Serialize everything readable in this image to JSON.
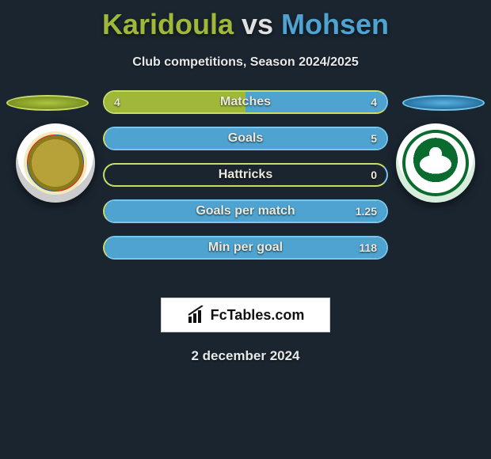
{
  "title": {
    "left": "Karidoula",
    "vs": "vs",
    "right": "Mohsen"
  },
  "subtitle": "Club competitions, Season 2024/2025",
  "colors": {
    "left": "#9fb83a",
    "left_border": "#c8dd65",
    "right": "#4fa3d1",
    "right_border": "#79c7ef",
    "bar_bg": "#1a2530",
    "text": "#eceadc"
  },
  "bars": [
    {
      "label": "Matches",
      "left": "4",
      "right": "4",
      "left_pct": 50,
      "right_pct": 50
    },
    {
      "label": "Goals",
      "left": "",
      "right": "5",
      "left_pct": 0,
      "right_pct": 100
    },
    {
      "label": "Hattricks",
      "left": "",
      "right": "0",
      "left_pct": 0,
      "right_pct": 0
    },
    {
      "label": "Goals per match",
      "left": "",
      "right": "1.25",
      "left_pct": 0,
      "right_pct": 100
    },
    {
      "label": "Min per goal",
      "left": "",
      "right": "118",
      "left_pct": 0,
      "right_pct": 100
    }
  ],
  "brand": "FcTables.com",
  "date": "2 december 2024"
}
